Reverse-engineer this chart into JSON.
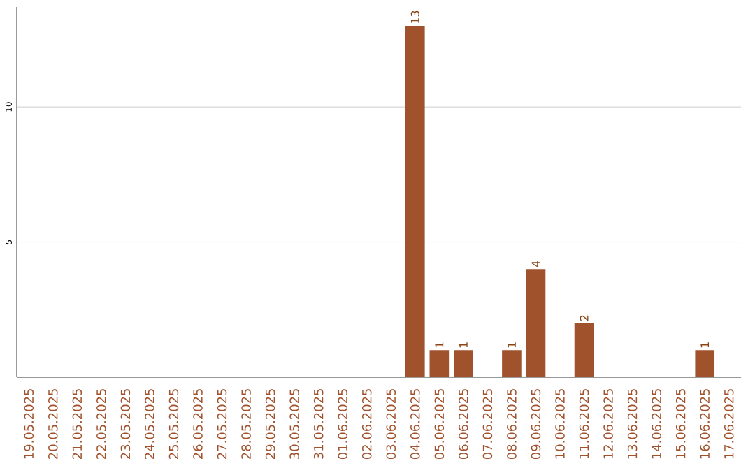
{
  "chart_data": {
    "type": "bar",
    "categories": [
      "19.05.2025",
      "20.05.2025",
      "21.05.2025",
      "22.05.2025",
      "23.05.2025",
      "24.05.2025",
      "25.05.2025",
      "26.05.2025",
      "27.05.2025",
      "28.05.2025",
      "29.05.2025",
      "30.05.2025",
      "31.05.2025",
      "01.06.2025",
      "02.06.2025",
      "03.06.2025",
      "04.06.2025",
      "05.06.2025",
      "06.06.2025",
      "07.06.2025",
      "08.06.2025",
      "09.06.2025",
      "10.06.2025",
      "11.06.2025",
      "12.06.2025",
      "13.06.2025",
      "14.06.2025",
      "15.06.2025",
      "16.06.2025",
      "17.06.2025"
    ],
    "values": [
      0,
      0,
      0,
      0,
      0,
      0,
      0,
      0,
      0,
      0,
      0,
      0,
      0,
      0,
      0,
      0,
      13,
      1,
      1,
      0,
      1,
      4,
      0,
      2,
      0,
      0,
      0,
      0,
      1,
      0
    ],
    "value_labels": [
      null,
      null,
      null,
      null,
      null,
      null,
      null,
      null,
      null,
      null,
      null,
      null,
      null,
      null,
      null,
      null,
      "13",
      "1",
      "1",
      null,
      "1",
      "4",
      null,
      "2",
      null,
      null,
      null,
      null,
      "1",
      null
    ],
    "color": "#a0522d",
    "ylim": [
      0,
      13.7
    ],
    "yticks": [
      5,
      10
    ],
    "grid": "y"
  }
}
